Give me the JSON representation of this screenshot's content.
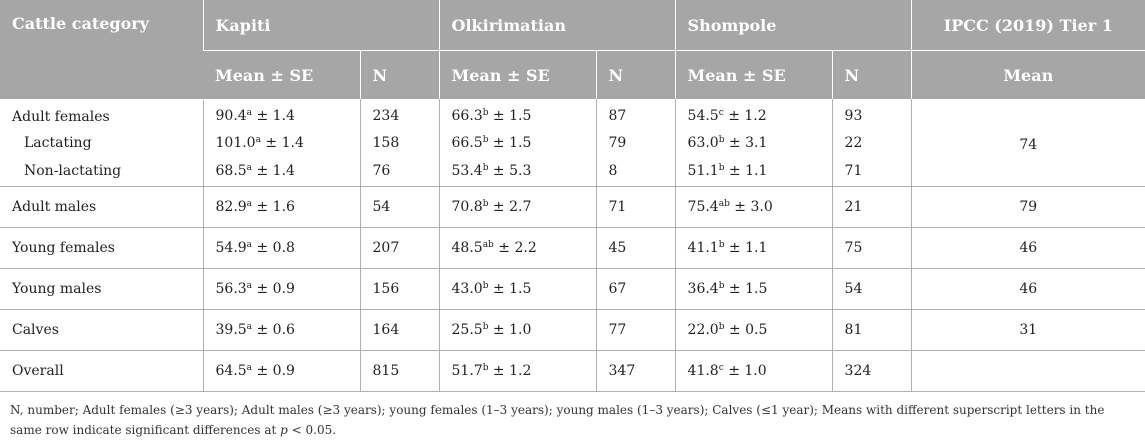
{
  "header": {
    "col_category": "Cattle category",
    "groups": [
      "Kapiti",
      "Olkirimatian",
      "Shompole",
      "IPCC (2019) Tier 1"
    ],
    "sub_mean": "Mean ± SE",
    "sub_n": "N",
    "sub_ipcc": "Mean"
  },
  "rows": [
    {
      "label": "Adult females",
      "k_mean": "90.4",
      "k_sup": "a",
      "k_se": " ± 1.4",
      "k_n": "234",
      "o_mean": "66.3",
      "o_sup": "b",
      "o_se": " ± 1.5",
      "o_n": "87",
      "s_mean": "54.5",
      "s_sup": "c",
      "s_se": " ± 1.2",
      "s_n": "93",
      "ipcc": "74"
    },
    {
      "label": "Lactating",
      "k_mean": "101.0",
      "k_sup": "a",
      "k_se": " ± 1.4",
      "k_n": "158",
      "o_mean": "66.5",
      "o_sup": "b",
      "o_se": " ± 1.5",
      "o_n": "79",
      "s_mean": "63.0",
      "s_sup": "b",
      "s_se": " ± 3.1",
      "s_n": "22",
      "ipcc": ""
    },
    {
      "label": "Non-lactating",
      "k_mean": "68.5",
      "k_sup": "a",
      "k_se": " ± 1.4",
      "k_n": "76",
      "o_mean": "53.4",
      "o_sup": "b",
      "o_se": " ± 5.3",
      "o_n": "8",
      "s_mean": "51.1",
      "s_sup": "b",
      "s_se": " ± 1.1",
      "s_n": "71",
      "ipcc": ""
    },
    {
      "label": "Adult males",
      "k_mean": "82.9",
      "k_sup": "a",
      "k_se": " ± 1.6",
      "k_n": "54",
      "o_mean": "70.8",
      "o_sup": "b",
      "o_se": " ± 2.7",
      "o_n": "71",
      "s_mean": "75.4",
      "s_sup": "ab",
      "s_se": " ± 3.0",
      "s_n": "21",
      "ipcc": "79"
    },
    {
      "label": "Young females",
      "k_mean": "54.9",
      "k_sup": "a",
      "k_se": " ± 0.8",
      "k_n": "207",
      "o_mean": "48.5",
      "o_sup": "ab",
      "o_se": " ± 2.2",
      "o_n": "45",
      "s_mean": "41.1",
      "s_sup": "b",
      "s_se": " ± 1.1",
      "s_n": "75",
      "ipcc": "46"
    },
    {
      "label": "Young males",
      "k_mean": "56.3",
      "k_sup": "a",
      "k_se": " ± 0.9",
      "k_n": "156",
      "o_mean": "43.0",
      "o_sup": "b",
      "o_se": " ± 1.5",
      "o_n": "67",
      "s_mean": "36.4",
      "s_sup": "b",
      "s_se": " ± 1.5",
      "s_n": "54",
      "ipcc": "46"
    },
    {
      "label": "Calves",
      "k_mean": "39.5",
      "k_sup": "a",
      "k_se": " ± 0.6",
      "k_n": "164",
      "o_mean": "25.5",
      "o_sup": "b",
      "o_se": " ± 1.0",
      "o_n": "77",
      "s_mean": "22.0",
      "s_sup": "b",
      "s_se": " ± 0.5",
      "s_n": "81",
      "ipcc": "31"
    },
    {
      "label": "Overall",
      "k_mean": "64.5",
      "k_sup": "a",
      "k_se": " ± 0.9",
      "k_n": "815",
      "o_mean": "51.7",
      "o_sup": "b",
      "o_se": " ± 1.2",
      "o_n": "347",
      "s_mean": "41.8",
      "s_sup": "c",
      "s_se": " ± 1.0",
      "s_n": "324",
      "ipcc": ""
    }
  ],
  "footnote": {
    "main": "N, number; Adult females (≥3 years); Adult males (≥3 years); young females (1–3 years); young males (1–3 years); Calves (≤1 year); Means with different superscript letters in the same row indicate significant differences at ",
    "p": "p",
    "tail": " < 0.05."
  },
  "colors": {
    "header_bg": "#a6a6a6",
    "header_text": "#ffffff",
    "rule": "#b0b0b0"
  }
}
